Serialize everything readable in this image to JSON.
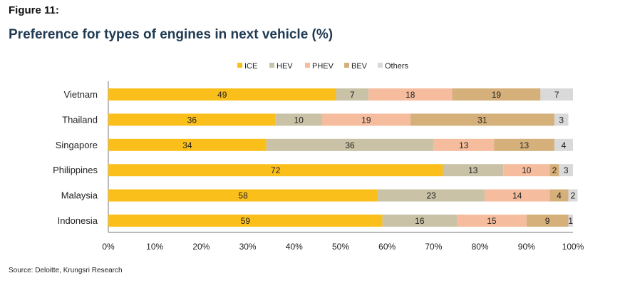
{
  "figure_label": "Figure 11:",
  "source": "Source: Deloitte, Krungsri Research",
  "chart_data": {
    "type": "bar",
    "orientation": "horizontal",
    "stacked": true,
    "title": "Preference for types of engines in next vehicle (%)",
    "legend_position": "top",
    "categories": [
      "Vietnam",
      "Thailand",
      "Singapore",
      "Philippines",
      "Malaysia",
      "Indonesia"
    ],
    "series": [
      {
        "name": "ICE",
        "color": "#fbbf1c",
        "values": [
          49,
          36,
          34,
          72,
          58,
          59
        ]
      },
      {
        "name": "HEV",
        "color": "#c9c2a6",
        "values": [
          7,
          10,
          36,
          13,
          23,
          16
        ]
      },
      {
        "name": "PHEV",
        "color": "#f5bd9d",
        "values": [
          18,
          19,
          13,
          10,
          14,
          15
        ]
      },
      {
        "name": "BEV",
        "color": "#d6b07a",
        "values": [
          19,
          31,
          13,
          2,
          4,
          9
        ]
      },
      {
        "name": "Others",
        "color": "#d9d9d9",
        "values": [
          7,
          3,
          4,
          3,
          2,
          1
        ]
      }
    ],
    "xlim": [
      0,
      100
    ],
    "xticks": [
      "0%",
      "10%",
      "20%",
      "30%",
      "40%",
      "50%",
      "60%",
      "70%",
      "80%",
      "90%",
      "100%"
    ],
    "grid": false
  }
}
